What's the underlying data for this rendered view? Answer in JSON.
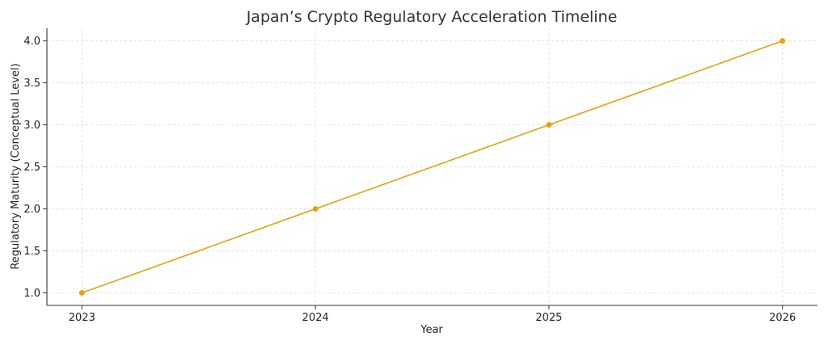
{
  "chart_data": {
    "type": "line",
    "title": "Japan’s Crypto Regulatory Acceleration Timeline",
    "xlabel": "Year",
    "ylabel": "Regulatory Maturity (Conceptual Level)",
    "x": [
      2023,
      2024,
      2025,
      2026
    ],
    "x_tick_labels": [
      "2023",
      "2024",
      "2025",
      "2026"
    ],
    "y_ticks": [
      1.0,
      1.5,
      2.0,
      2.5,
      3.0,
      3.5,
      4.0
    ],
    "y_tick_labels": [
      "1.0",
      "1.5",
      "2.0",
      "2.5",
      "3.0",
      "3.5",
      "4.0"
    ],
    "xlim": [
      2022.85,
      2026.15
    ],
    "ylim": [
      0.85,
      4.15
    ],
    "grid": true,
    "series": [
      {
        "values": [
          1.0,
          2.0,
          3.0,
          4.0
        ],
        "color": "#e5a00d",
        "marker": "circle"
      }
    ]
  }
}
